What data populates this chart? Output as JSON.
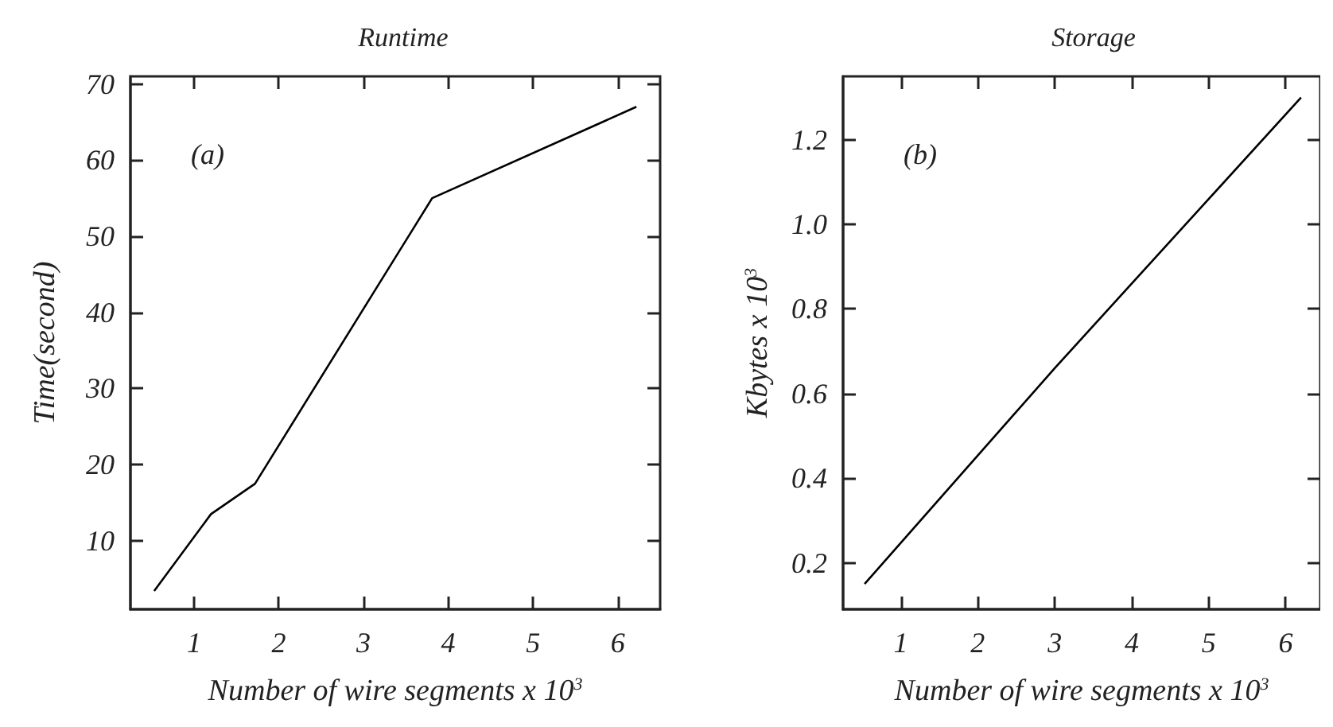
{
  "chart_data": [
    {
      "type": "line",
      "title": "Runtime",
      "xlabel": "Number of wire segments x 10$^{3}$",
      "ylabel": "Time(second)",
      "annotations": [
        "(a)"
      ],
      "series": [
        {
          "color": "#000000",
          "x": [
            0.53,
            1.2,
            1.72,
            3.81,
            6.22
          ],
          "values": [
            3.4,
            13.5,
            17.5,
            55,
            67
          ]
        }
      ],
      "xlim": [
        0.25,
        6.5
      ],
      "xticks": [
        1,
        2,
        3,
        4,
        5,
        6
      ],
      "ylim": [
        1,
        71
      ],
      "yticks": [
        10,
        20,
        30,
        40,
        50,
        60,
        70
      ]
    },
    {
      "type": "line",
      "title": "Storage",
      "xlabel": "Number of wire segments x 10$^{3}$",
      "ylabel": "Kbytes x 10$^{3}$",
      "annotations": [
        "(b)"
      ],
      "series": [
        {
          "color": "#000000",
          "x": [
            0.53,
            3,
            6.2
          ],
          "values": [
            0.15,
            0.66,
            1.3
          ]
        }
      ],
      "xlim": [
        0.25,
        6.45
      ],
      "xticks": [
        1,
        2,
        3,
        4,
        5,
        6
      ],
      "ylim": [
        0.09,
        1.35
      ],
      "yticks": [
        0.2,
        0.4,
        0.6,
        0.8,
        {
          "value": 1,
          "label": "1.0"
        },
        1.2
      ]
    }
  ]
}
